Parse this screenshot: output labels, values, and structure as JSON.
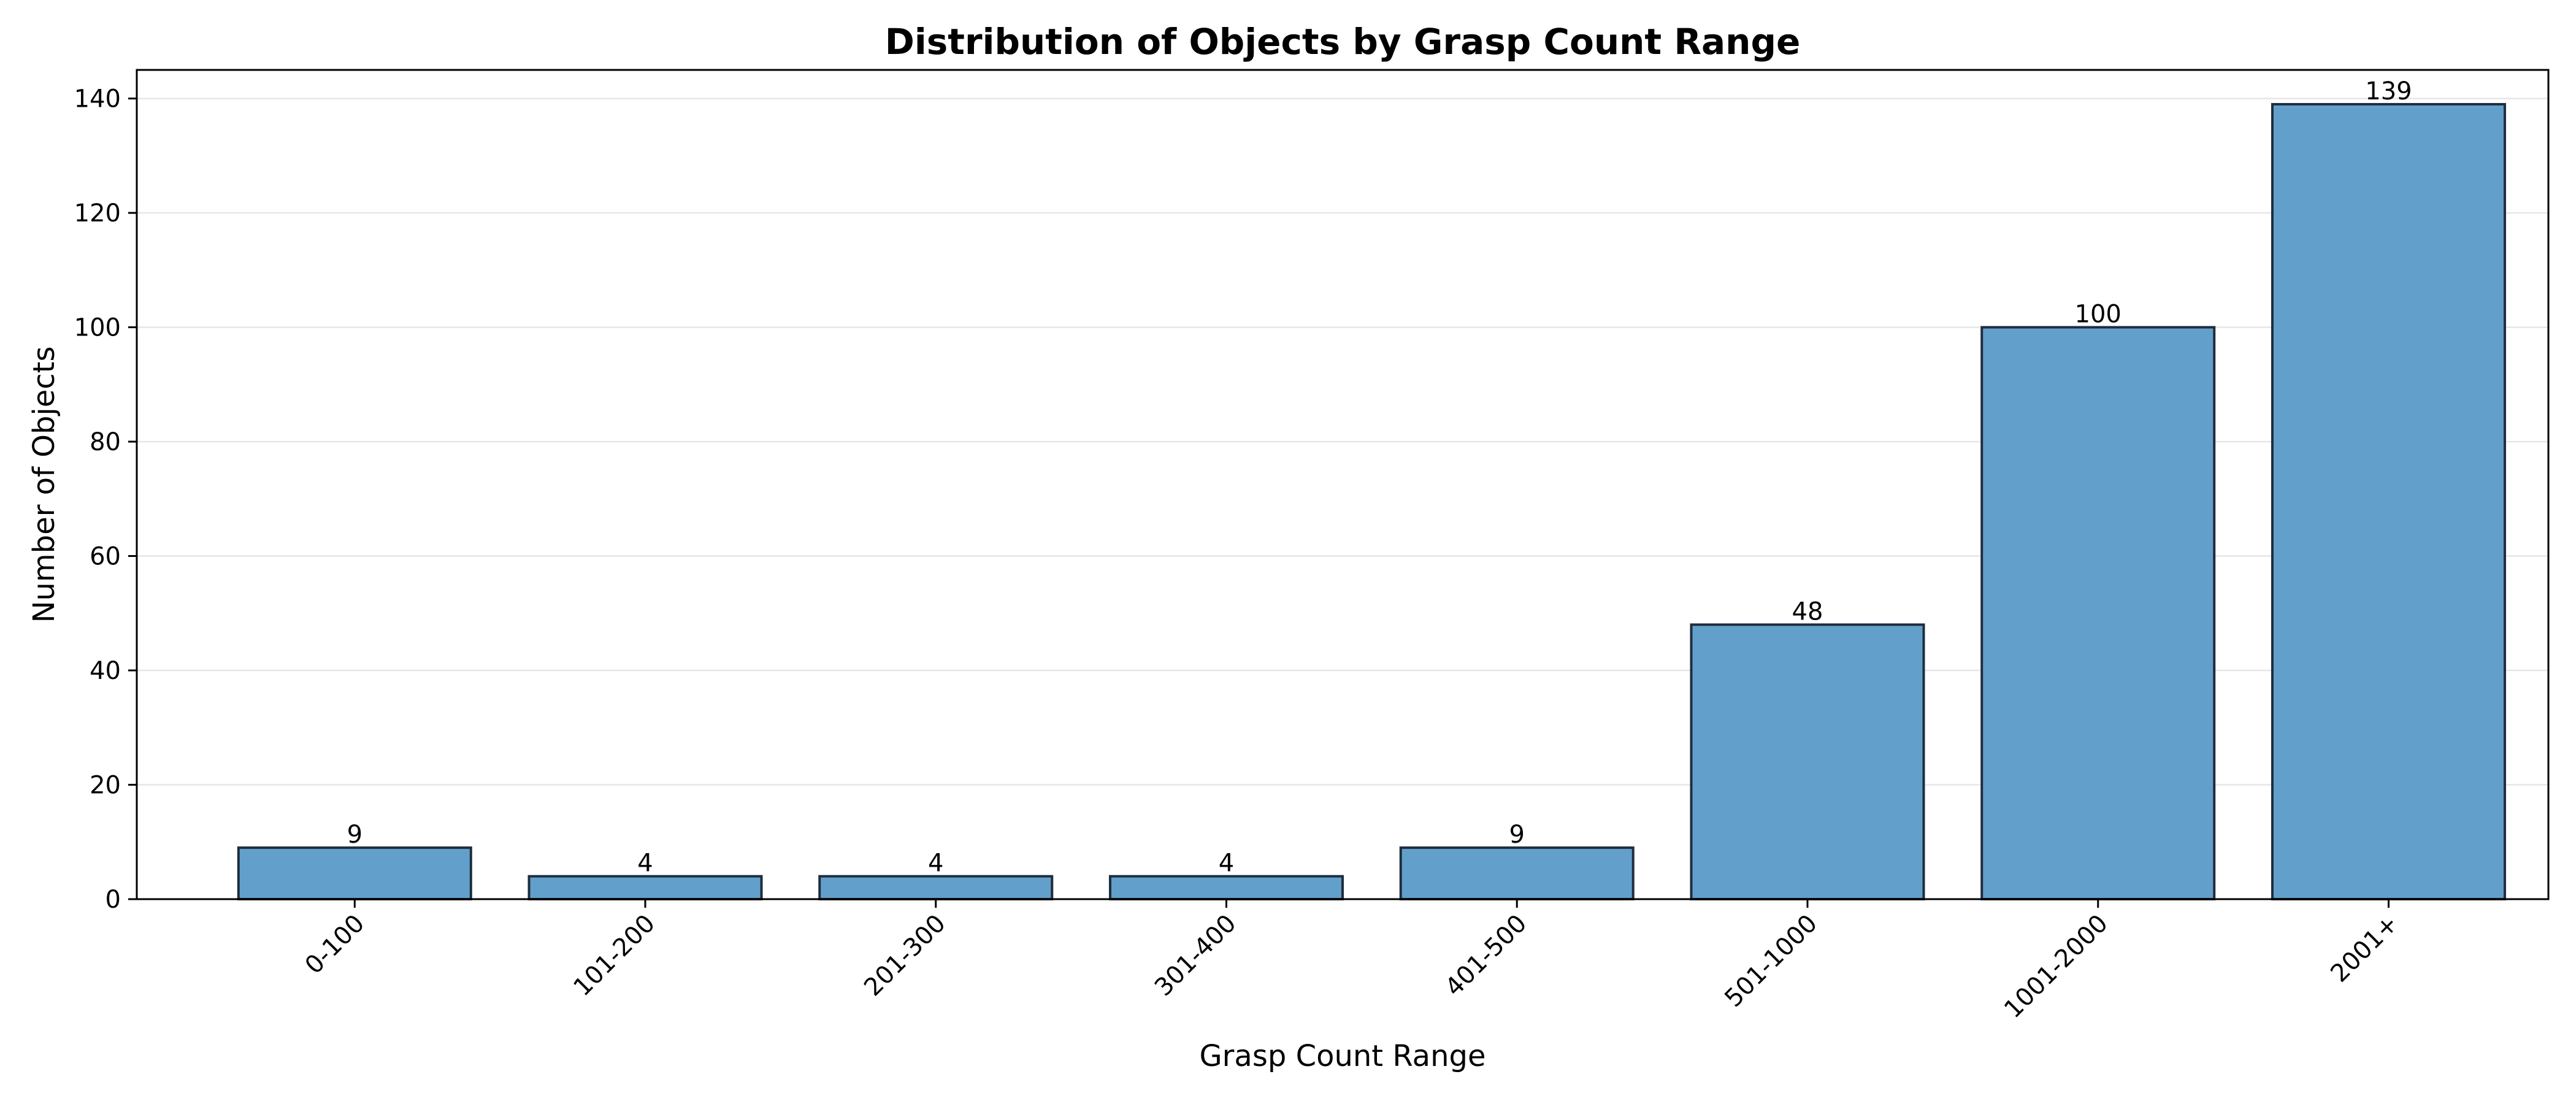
{
  "chart_data": {
    "type": "bar",
    "title": "Distribution of Objects by Grasp Count Range",
    "xlabel": "Grasp Count Range",
    "ylabel": "Number of Objects",
    "categories": [
      "0-100",
      "101-200",
      "201-300",
      "301-400",
      "401-500",
      "501-1000",
      "1001-2000",
      "2001+"
    ],
    "values": [
      9,
      4,
      4,
      4,
      9,
      48,
      100,
      139
    ],
    "data_labels": [
      "9",
      "4",
      "4",
      "4",
      "9",
      "48",
      "100",
      "139"
    ],
    "ylim": [
      0,
      145
    ],
    "yticks": [
      0,
      20,
      40,
      60,
      80,
      100,
      120,
      140
    ],
    "grid": "horizontal",
    "bar_color": "#62a0cb",
    "edge_color": "#1f2d3d"
  }
}
